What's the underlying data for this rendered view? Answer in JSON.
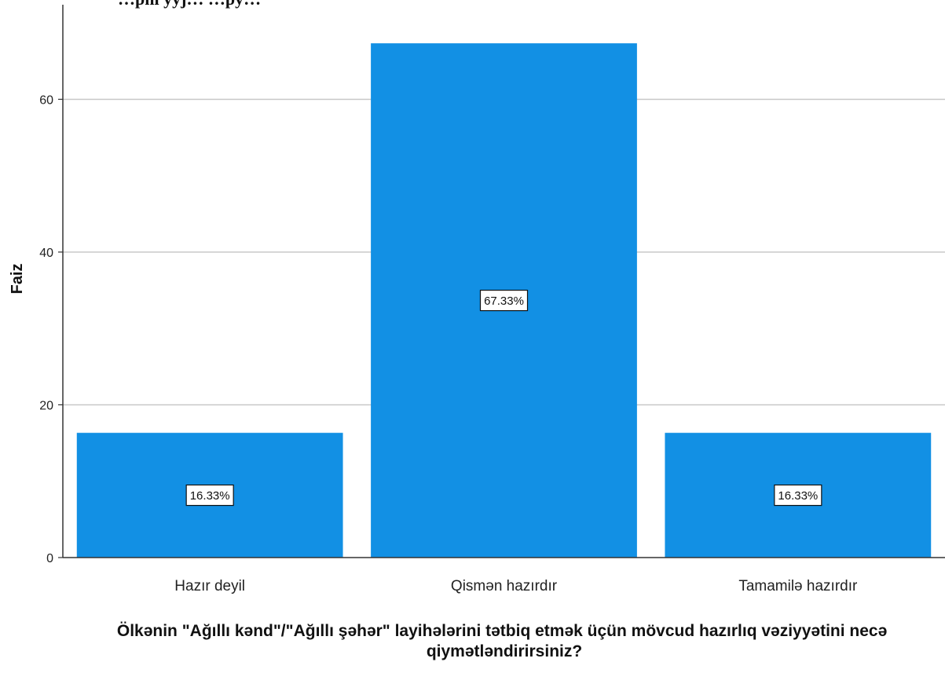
{
  "top_clipped_text": "…pni yyj…  …py…",
  "chart_data": {
    "type": "bar",
    "categories": [
      "Hazır deyil",
      "Qismən hazırdır",
      "Tamamilə hazırdır"
    ],
    "values": [
      16.33,
      67.33,
      16.33
    ],
    "data_labels": [
      "16.33%",
      "67.33%",
      "16.33%"
    ],
    "ylabel": "Faiz",
    "xlabel_lines": [
      "Ölkənin \"Ağıllı kənd\"/\"Ağıllı şəhər\" layihələrini tətbiq etmək üçün mövcud hazırlıq vəziyyətini necə",
      "qiymətləndirirsiniz?"
    ],
    "ylim": [
      0,
      73
    ],
    "yticks": [
      0,
      20,
      40,
      60
    ],
    "grid": true,
    "bar_color": "#1290e4"
  }
}
